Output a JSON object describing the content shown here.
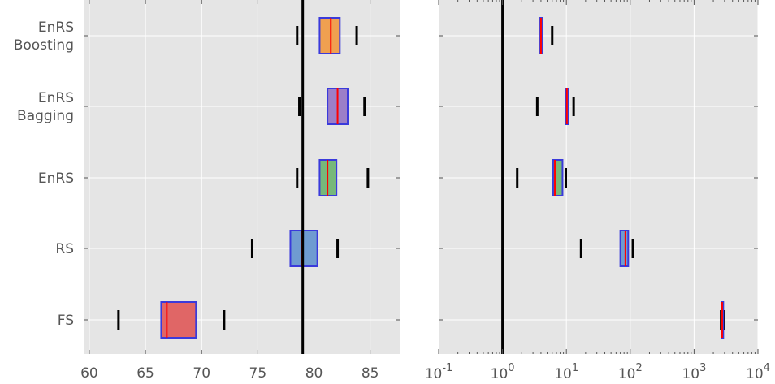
{
  "chart_data": [
    {
      "type": "box",
      "xscale": "linear",
      "xlim": [
        59.5,
        87.7
      ],
      "xticks": [
        "60",
        "65",
        "70",
        "75",
        "80",
        "85"
      ],
      "categories": [
        "EnRS Boosting",
        "EnRS Bagging",
        "EnRS",
        "RS",
        "FS"
      ],
      "category_lines": [
        [
          "EnRS",
          "Boosting"
        ],
        [
          "EnRS",
          "Bagging"
        ],
        [
          "EnRS"
        ],
        [
          "RS"
        ],
        [
          "FS"
        ]
      ],
      "reference_line": 79.0,
      "grid": true,
      "boxes": [
        {
          "name": "EnRS Boosting",
          "whisker_low": 78.5,
          "q1": 80.5,
          "median": 81.5,
          "q3": 82.3,
          "whisker_high": 83.8,
          "color": "#f0a050"
        },
        {
          "name": "EnRS Bagging",
          "whisker_low": 78.7,
          "q1": 81.2,
          "median": 82.1,
          "q3": 83.0,
          "whisker_high": 84.5,
          "color": "#9b7fc8"
        },
        {
          "name": "EnRS",
          "whisker_low": 78.5,
          "q1": 80.5,
          "median": 81.2,
          "q3": 82.0,
          "whisker_high": 84.8,
          "color": "#77b87a"
        },
        {
          "name": "RS",
          "whisker_low": 74.5,
          "q1": 77.9,
          "median": 78.9,
          "q3": 80.3,
          "whisker_high": 82.1,
          "color": "#6f9bd1"
        },
        {
          "name": "FS",
          "whisker_low": 62.6,
          "q1": 66.4,
          "median": 66.9,
          "q3": 69.5,
          "whisker_high": 72.0,
          "color": "#e06666"
        }
      ]
    },
    {
      "type": "box",
      "xscale": "log",
      "xlim": [
        0.1,
        10000
      ],
      "xticks": [
        {
          "base": "10",
          "exp": "-1"
        },
        {
          "base": "10",
          "exp": "0"
        },
        {
          "base": "10",
          "exp": "1"
        },
        {
          "base": "10",
          "exp": "2"
        },
        {
          "base": "10",
          "exp": "3"
        },
        {
          "base": "10",
          "exp": "4"
        }
      ],
      "categories": [
        "EnRS Boosting",
        "EnRS Bagging",
        "EnRS",
        "RS",
        "FS"
      ],
      "reference_line": 1.0,
      "grid": true,
      "boxes": [
        {
          "name": "EnRS Boosting",
          "whisker_low": 1.02,
          "q1": 3.9,
          "median": 4.0,
          "q3": 4.2,
          "whisker_high": 6.0,
          "color": "#f0a050"
        },
        {
          "name": "EnRS Bagging",
          "whisker_low": 3.5,
          "q1": 9.8,
          "median": 10.2,
          "q3": 10.8,
          "whisker_high": 13.0,
          "color": "#9b7fc8"
        },
        {
          "name": "EnRS",
          "whisker_low": 1.7,
          "q1": 6.2,
          "median": 6.6,
          "q3": 8.7,
          "whisker_high": 9.8,
          "color": "#77b87a"
        },
        {
          "name": "RS",
          "whisker_low": 17,
          "q1": 70,
          "median": 84,
          "q3": 93,
          "whisker_high": 110,
          "color": "#6f9bd1"
        },
        {
          "name": "FS",
          "whisker_low": 2650,
          "q1": 2700,
          "median": 2750,
          "q3": 2800,
          "whisker_high": 2950,
          "color": "#e06666"
        }
      ]
    }
  ],
  "colors": {
    "background": "#e5e5e5",
    "grid": "#ffffff",
    "box_edge": "#3a3adb",
    "median": "#ff0000",
    "whisker": "#000000",
    "reference": "#000000",
    "tick_text": "#555555"
  }
}
